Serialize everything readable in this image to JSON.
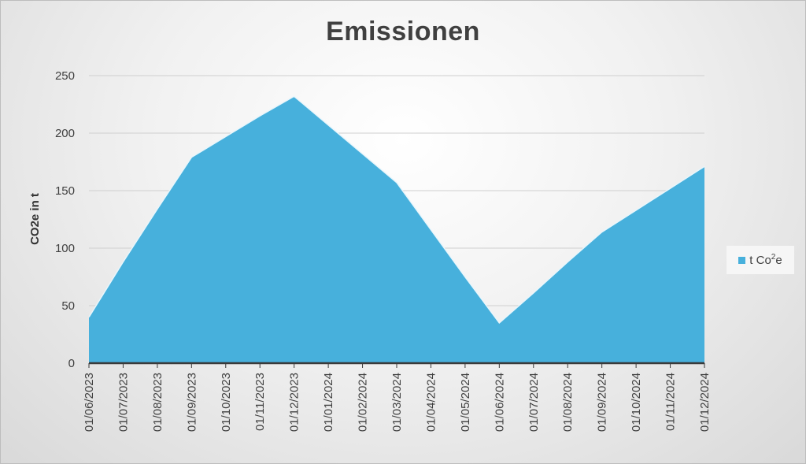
{
  "chart_data": {
    "type": "area",
    "title": "Emissionen",
    "ylabel": "CO2e in t",
    "xlabel": "",
    "ylim": [
      0,
      250
    ],
    "yticks": [
      0,
      50,
      100,
      150,
      200,
      250
    ],
    "grid": true,
    "legend_position": "right",
    "categories": [
      "01/06/2023",
      "01/07/2023",
      "01/08/2023",
      "01/09/2023",
      "01/10/2023",
      "01/11/2023",
      "01/12/2023",
      "01/01/2024",
      "01/02/2024",
      "01/03/2024",
      "01/04/2024",
      "01/05/2024",
      "01/06/2024",
      "01/07/2024",
      "01/08/2024",
      "01/09/2024",
      "01/10/2024",
      "01/11/2024",
      "01/12/2024"
    ],
    "series": [
      {
        "name": "t Co²e",
        "color": "#47B0DC",
        "values": [
          40,
          88,
          134,
          179,
          197,
          215,
          232,
          207,
          182,
          157,
          116,
          75,
          35,
          61,
          88,
          114,
          133,
          152,
          171
        ]
      }
    ]
  },
  "legend": {
    "label_main": "t Co",
    "label_sup": "2",
    "label_tail": "e"
  }
}
